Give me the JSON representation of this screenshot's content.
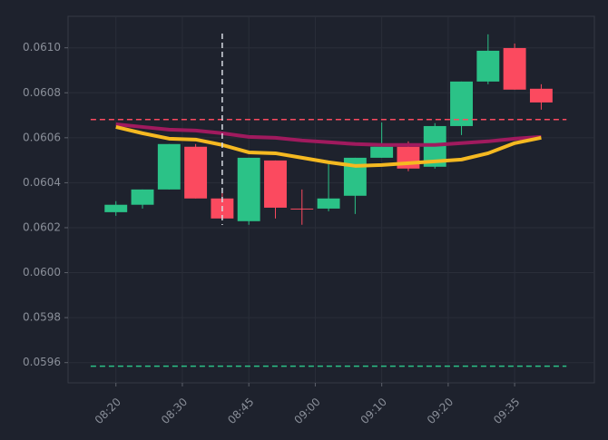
{
  "chart_data": {
    "type": "candlestick",
    "x": [
      0,
      1,
      2,
      3,
      4,
      5,
      6,
      7,
      8,
      9,
      10,
      11,
      12,
      13,
      14,
      15,
      16
    ],
    "open": [
      0.060269,
      0.060302,
      0.06037,
      0.06056,
      0.06033,
      0.060229,
      0.060499,
      0.060285,
      0.060285,
      0.060342,
      0.060511,
      0.06056,
      0.060471,
      0.060652,
      0.06085,
      0.060999,
      0.060818
    ],
    "high": [
      0.060318,
      0.06037,
      0.060572,
      0.060572,
      0.060354,
      0.060511,
      0.060499,
      0.06037,
      0.060483,
      0.060511,
      0.060668,
      0.060584,
      0.060665,
      0.06085,
      0.06106,
      0.061019,
      0.060838
    ],
    "low": [
      0.060253,
      0.060285,
      0.06037,
      0.06033,
      0.060233,
      0.060213,
      0.060241,
      0.060213,
      0.060273,
      0.060261,
      0.060511,
      0.060451,
      0.060463,
      0.060612,
      0.060838,
      0.060814,
      0.060725
    ],
    "close": [
      0.060302,
      0.06037,
      0.060572,
      0.06033,
      0.060241,
      0.060511,
      0.060289,
      0.060285,
      0.06033,
      0.060511,
      0.06056,
      0.060463,
      0.060652,
      0.06085,
      0.060987,
      0.060814,
      0.060757
    ],
    "up_color": "#2bc287",
    "down_color": "#fb4a5f",
    "series": [
      {
        "color": "#a01a5e",
        "values": [
          0.06066,
          0.060648,
          0.060636,
          0.060632,
          0.06062,
          0.060604,
          0.0606,
          0.060588,
          0.06058,
          0.060572,
          0.060568,
          0.060568,
          0.060568,
          0.060576,
          0.060584,
          0.060596,
          0.060604
        ]
      },
      {
        "color": "#f5b921",
        "values": [
          0.060648,
          0.06062,
          0.060596,
          0.060592,
          0.060568,
          0.060535,
          0.060531,
          0.060511,
          0.060491,
          0.060475,
          0.060479,
          0.060487,
          0.060495,
          0.060503,
          0.060531,
          0.060576,
          0.0606
        ]
      }
    ],
    "hlines": [
      {
        "value": 0.060681,
        "color": "#fb4a5f"
      },
      {
        "value": 0.059584,
        "color": "#2bc287"
      }
    ],
    "vline": {
      "x": 4,
      "color": "#d8dce3"
    },
    "xlim": [
      -1.8,
      18
    ],
    "xticks": [
      {
        "value": 0,
        "label": "08:20"
      },
      {
        "value": 2.5,
        "label": "08:30"
      },
      {
        "value": 5,
        "label": "08:45"
      },
      {
        "value": 7.5,
        "label": "09:00"
      },
      {
        "value": 10,
        "label": "09:10"
      },
      {
        "value": 12.5,
        "label": "09:20"
      },
      {
        "value": 15,
        "label": "09:35"
      }
    ],
    "ylim": [
      0.05951,
      0.06114
    ],
    "yticks": [
      0.0596,
      0.0598,
      {
        "value": 0.06,
        "label": "0.0600"
      },
      0.0602,
      0.0604,
      0.0606,
      0.0608,
      {
        "value": 0.061,
        "label": "0.0610"
      }
    ],
    "grid": true
  }
}
